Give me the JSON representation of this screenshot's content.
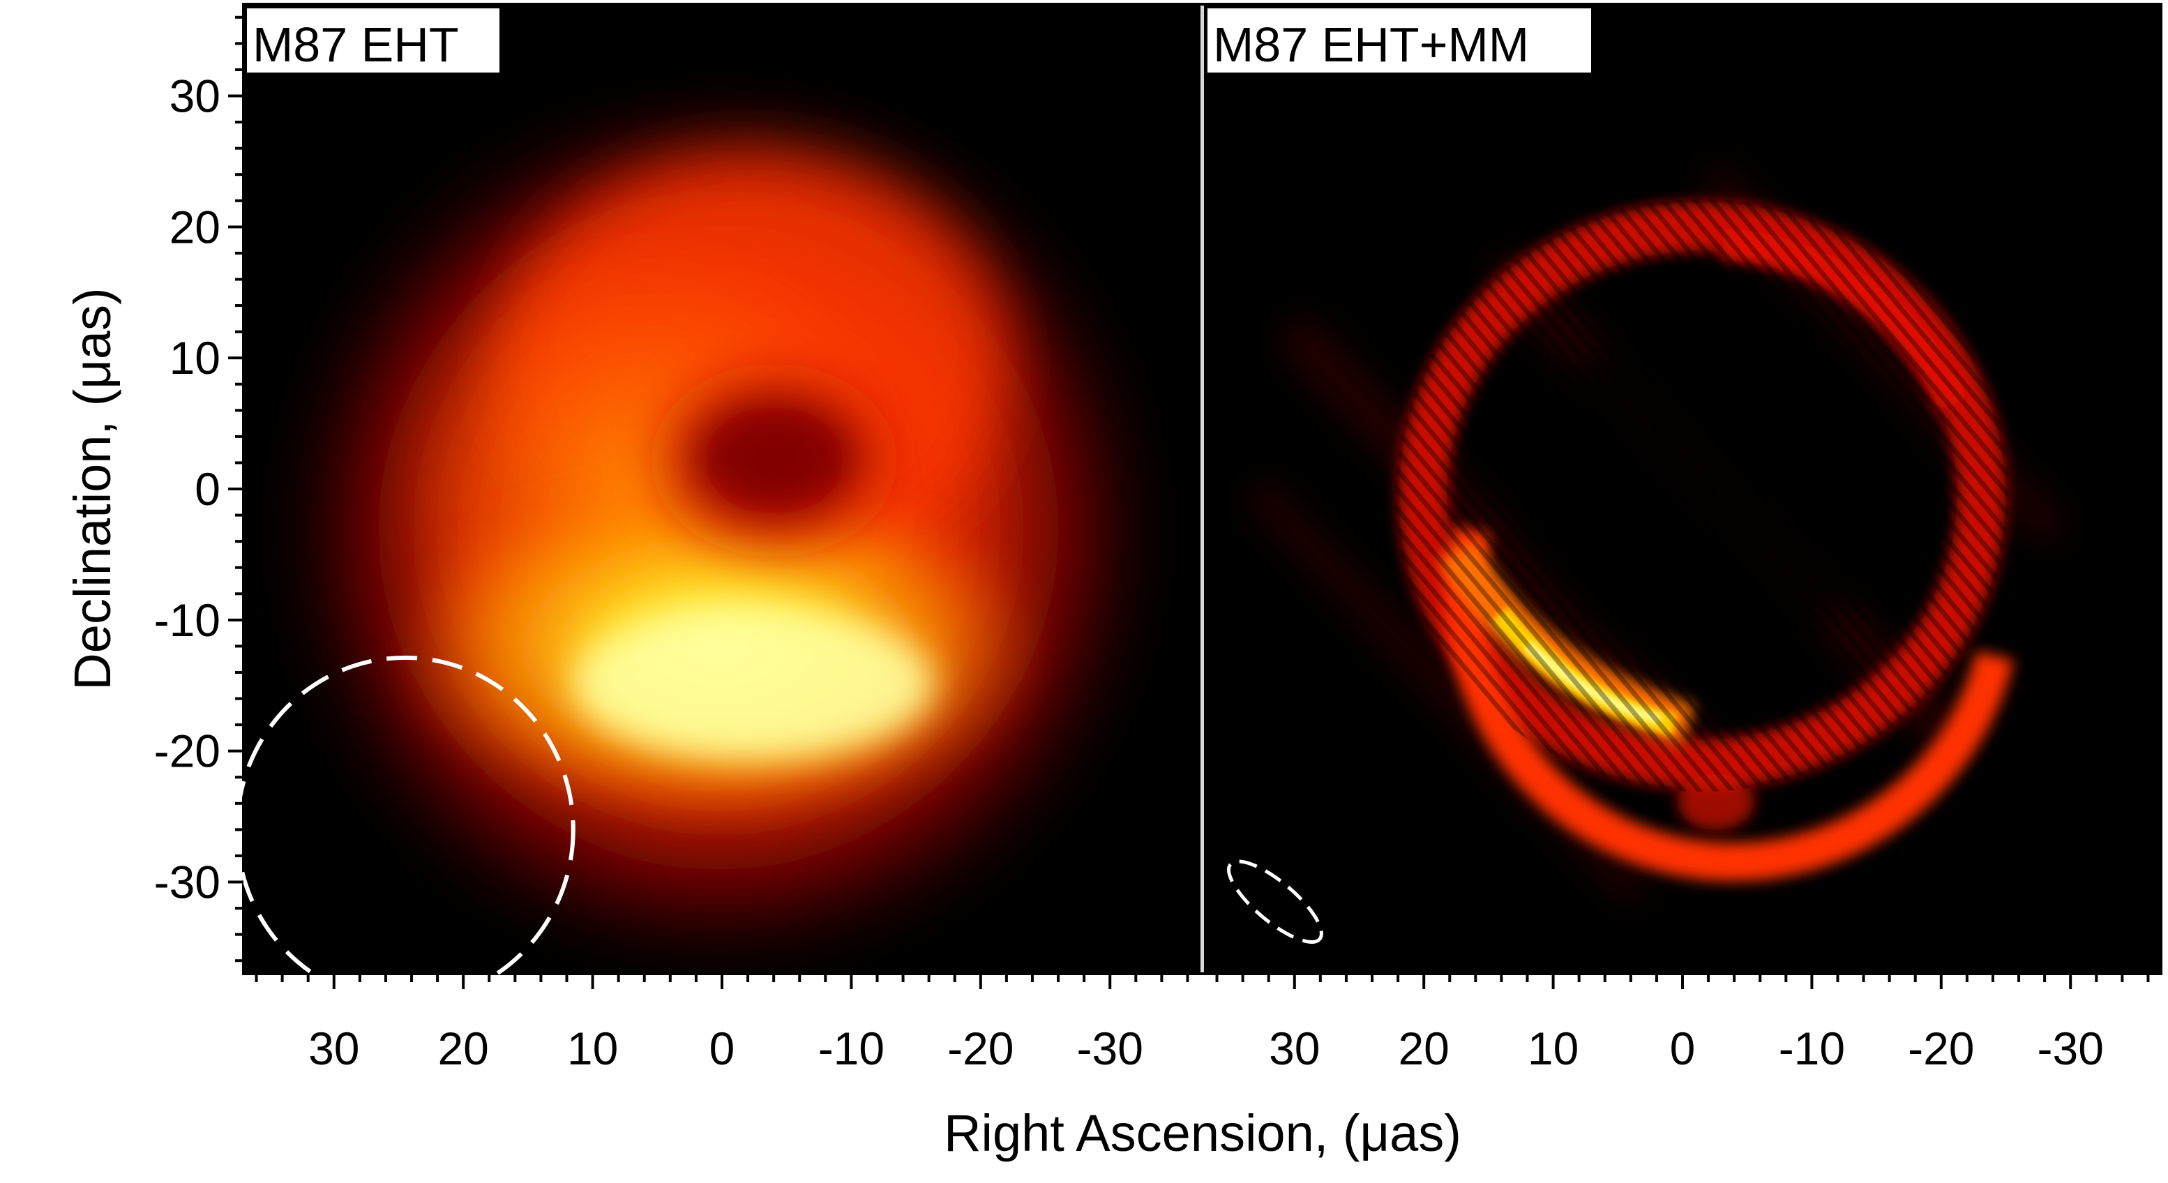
{
  "chart_data": {
    "type": "heatmap",
    "ylabel": "Declination, (μas)",
    "xlabel": "Right Ascension, (μas)",
    "xlim": [
      37,
      -37
    ],
    "ylim": [
      -37,
      37
    ],
    "x_ticks": [
      30,
      20,
      10,
      0,
      -10,
      -20,
      -30
    ],
    "y_ticks": [
      30,
      20,
      10,
      0,
      -10,
      -20,
      -30
    ],
    "colormap": [
      "#000000",
      "#7a0000",
      "#e02000",
      "#ff7a00",
      "#ffd000",
      "#ffff60"
    ],
    "panels": [
      {
        "title": "M87 EHT",
        "image": "thick blurred ring, bright crescent in the south",
        "beam": {
          "center": [
            24.5,
            -26
          ],
          "semi_major": 13,
          "semi_minor": 10.5,
          "angle_deg": 0,
          "style": "white dashed ellipse"
        }
      },
      {
        "title": "M87 EHT+MM",
        "image": "thin ring of diameter ~40 uas with bright arc toward south-east",
        "beam": {
          "center": [
            31.5,
            -31.5
          ],
          "semi_major": 4.5,
          "semi_minor": 1.5,
          "angle_deg": -35,
          "style": "white dashed ellipse"
        }
      }
    ]
  }
}
